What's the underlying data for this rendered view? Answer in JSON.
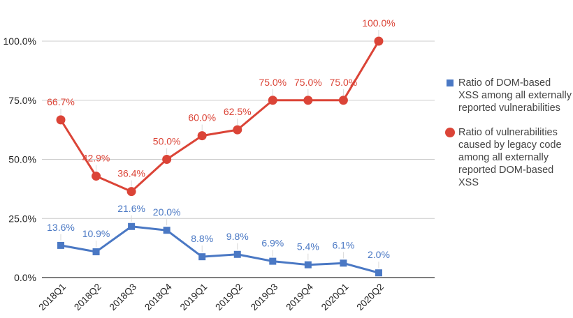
{
  "chart_data": {
    "type": "line",
    "categories": [
      "2018Q1",
      "2018Q2",
      "2018Q3",
      "2018Q4",
      "2019Q1",
      "2019Q2",
      "2019Q3",
      "2019Q4",
      "2020Q1",
      "2020Q2"
    ],
    "ylim": [
      0,
      100
    ],
    "yticks": [
      0,
      25,
      50,
      75,
      100
    ],
    "ytick_labels": [
      "0.0%",
      "25.0%",
      "50.0%",
      "75.0%",
      "100.0%"
    ],
    "grid": true,
    "legend_position": "right",
    "series": [
      {
        "name": "Ratio of DOM-based XSS among all externally reported vulnerabilities",
        "marker": "square",
        "color": "#4a78c4",
        "values": [
          13.6,
          10.9,
          21.6,
          20.0,
          8.8,
          9.8,
          6.9,
          5.4,
          6.1,
          2.0
        ],
        "labels": [
          "13.6%",
          "10.9%",
          "21.6%",
          "20.0%",
          "8.8%",
          "9.8%",
          "6.9%",
          "5.4%",
          "6.1%",
          "2.0%"
        ]
      },
      {
        "name": "Ratio of vulnerabilities caused by legacy code among all externally reported DOM-based XSS",
        "marker": "circle",
        "color": "#db4437",
        "values": [
          66.7,
          42.9,
          36.4,
          50.0,
          60.0,
          62.5,
          75.0,
          75.0,
          75.0,
          100.0
        ],
        "labels": [
          "66.7%",
          "42.9%",
          "36.4%",
          "50.0%",
          "60.0%",
          "62.5%",
          "75.0%",
          "75.0%",
          "75.0%",
          "100.0%"
        ]
      }
    ]
  }
}
